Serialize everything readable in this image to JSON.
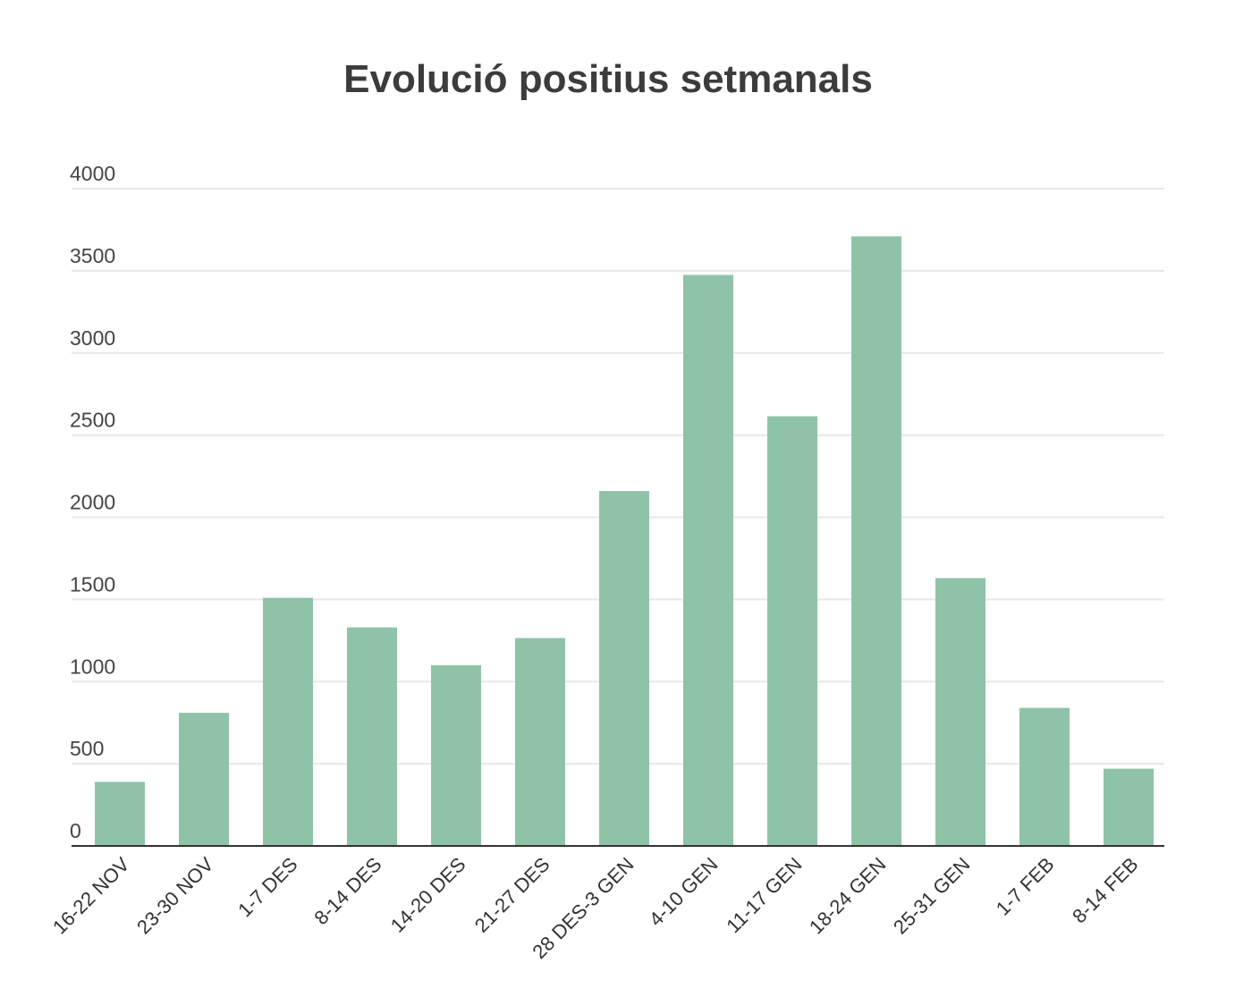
{
  "chart_data": {
    "type": "bar",
    "title": "Evolució positius setmanals",
    "xlabel": "",
    "ylabel": "",
    "categories": [
      "16-22 NOV",
      "23-30 NOV",
      "1-7 DES",
      "8-14 DES",
      "14-20 DES",
      "21-27 DES",
      "28 DES-3 GEN",
      "4-10 GEN",
      "11-17 GEN",
      "18-24 GEN",
      "25-31 GEN",
      "1-7 FEB",
      "8-14 FEB"
    ],
    "values": [
      390,
      810,
      1510,
      1330,
      1100,
      1265,
      2160,
      3475,
      2615,
      3710,
      1630,
      840,
      470
    ],
    "yticks": [
      0,
      500,
      1000,
      1500,
      2000,
      2500,
      3000,
      3500,
      4000
    ],
    "ylim": [
      0,
      4000
    ],
    "grid": true,
    "legend": "none",
    "colors": {
      "bar": "#8fc3a7",
      "grid": "#e8e8e8",
      "axis": "#333333"
    }
  }
}
